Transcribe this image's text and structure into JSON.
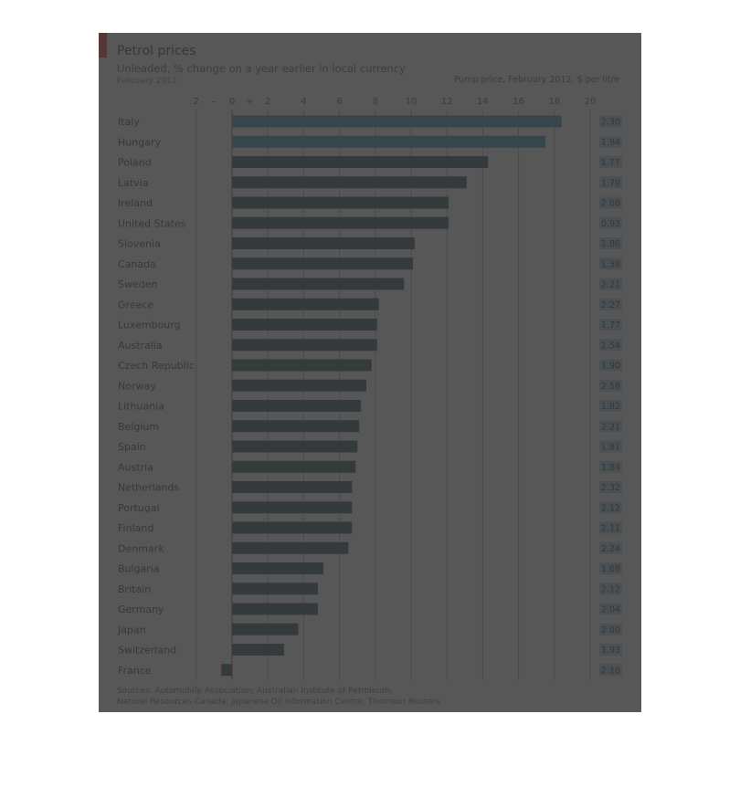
{
  "header": {
    "title": "Petrol prices",
    "subtitle": "Unleaded, % change on a year earlier in local currency",
    "date": "February 2012",
    "price_heading": "Pump price, February 2012, $ per litre"
  },
  "sources": {
    "line1": "Sources: Automobile Association; Australian Institute of Petroleum;",
    "line2": "Natural Resources Canada; Japanese Oil Information Centre; Thomson Reuters"
  },
  "colors": {
    "bar": "#0b2e44",
    "bar_highlight": "#1a7fb0",
    "accent": "#e8171f",
    "grid": "#9a9a9a",
    "zero_line": "#b01010",
    "price_box": "#9fc4d8"
  },
  "chart_data": {
    "type": "bar",
    "orientation": "horizontal",
    "title": "Petrol prices",
    "xlim": [
      -2,
      20
    ],
    "x_ticks": [
      -2,
      0,
      2,
      4,
      6,
      8,
      10,
      12,
      14,
      16,
      18,
      20
    ],
    "x_tick_labels": [
      "2",
      "0",
      "2",
      "4",
      "6",
      "8",
      "10",
      "12",
      "14",
      "16",
      "18",
      "20"
    ],
    "x_sign_labels": [
      "–",
      "+"
    ],
    "grid": true,
    "categories": [
      "Italy",
      "Hungary",
      "Poland",
      "Latvia",
      "Ireland",
      "United States",
      "Slovenia",
      "Canada",
      "Sweden",
      "Greece",
      "Luxembourg",
      "Australia",
      "Czech Republic",
      "Norway",
      "Lithuania",
      "Belgium",
      "Spain",
      "Austria",
      "Netherlands",
      "Portugal",
      "Finland",
      "Denmark",
      "Bulgaria",
      "Britain",
      "Germany",
      "Japan",
      "Switzerland",
      "France"
    ],
    "values": [
      18.4,
      17.5,
      14.3,
      13.1,
      12.1,
      12.1,
      10.2,
      10.1,
      9.6,
      8.2,
      8.1,
      8.1,
      7.8,
      7.5,
      7.2,
      7.1,
      7.0,
      6.9,
      6.7,
      6.7,
      6.7,
      6.5,
      5.1,
      4.8,
      4.8,
      3.7,
      2.9,
      -0.6
    ],
    "series": [
      {
        "name": "Pump price, February 2012, $ per litre",
        "values": [
          2.3,
          1.94,
          1.77,
          1.79,
          2.08,
          0.93,
          1.86,
          1.39,
          2.21,
          2.27,
          1.77,
          1.54,
          1.9,
          2.58,
          1.82,
          2.21,
          1.81,
          1.84,
          2.32,
          2.12,
          2.11,
          2.24,
          1.68,
          2.12,
          2.04,
          2.0,
          1.93,
          2.1
        ],
        "labels": [
          "2.30",
          "1.94",
          "1.77",
          "1.79",
          "2.08",
          "0.93",
          "1.86",
          "1.39",
          "2.21",
          "2.27",
          "1.77",
          "1.54",
          "1.90",
          "2.58",
          "1.82",
          "2.21",
          "1.81",
          "1.84",
          "2.32",
          "2.12",
          "2.11",
          "2.24",
          "1.68",
          "2.12",
          "2.04",
          "2.00",
          "1.93",
          "2.10"
        ]
      }
    ]
  }
}
